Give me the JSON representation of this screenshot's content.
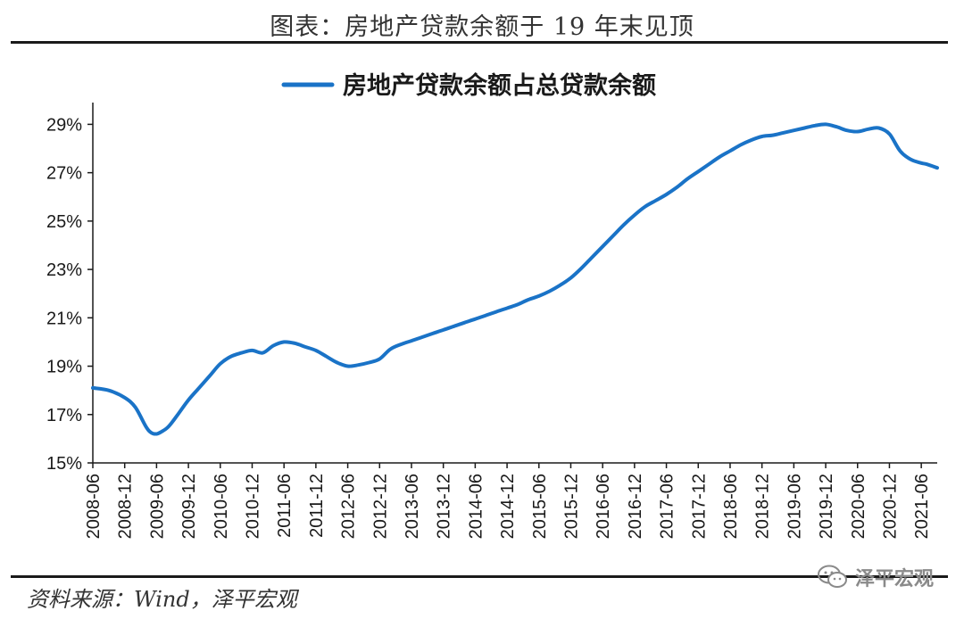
{
  "header": {
    "title": "图表：房地产贷款余额于 19 年末见顶"
  },
  "source": "资料来源：Wind，泽平宏观",
  "watermark": {
    "label": "泽平宏观",
    "icon": "wechat-icon"
  },
  "colors": {
    "series": "#1a73c7",
    "axis": "#1a1a1a",
    "rule": "#1a1a1a"
  },
  "chart_data": {
    "type": "line",
    "title": "",
    "xlabel": "",
    "ylabel": "",
    "ylim": [
      15,
      29.9
    ],
    "y_ticks": [
      15,
      17,
      19,
      21,
      23,
      25,
      27,
      29
    ],
    "y_tick_labels": [
      "15%",
      "17%",
      "19%",
      "21%",
      "23%",
      "25%",
      "27%",
      "29%"
    ],
    "x_range": [
      0,
      159
    ],
    "x_tick_labels": [
      "2008-06",
      "2008-12",
      "2009-06",
      "2009-12",
      "2010-06",
      "2010-12",
      "2011-06",
      "2011-12",
      "2012-06",
      "2012-12",
      "2013-06",
      "2013-12",
      "2014-06",
      "2014-12",
      "2015-06",
      "2015-12",
      "2016-06",
      "2016-12",
      "2017-06",
      "2017-12",
      "2018-06",
      "2018-12",
      "2019-06",
      "2019-12",
      "2020-06",
      "2020-12",
      "2021-06"
    ],
    "legend": {
      "position": "top-center"
    },
    "series": [
      {
        "name": "房地产贷款余额占总贷款余额",
        "x": [
          0,
          3,
          6,
          8,
          10,
          11,
          12,
          13,
          14,
          15,
          16,
          18,
          20,
          22,
          24,
          26,
          28,
          30,
          32,
          34,
          36,
          38,
          40,
          42,
          44,
          46,
          48,
          50,
          52,
          54,
          56,
          58,
          60,
          62,
          64,
          66,
          68,
          70,
          72,
          74,
          76,
          78,
          80,
          82,
          84,
          86,
          88,
          90,
          92,
          94,
          96,
          98,
          100,
          102,
          104,
          106,
          108,
          110,
          112,
          114,
          116,
          118,
          120,
          122,
          124,
          126,
          128,
          130,
          132,
          134,
          136,
          138,
          140,
          142,
          144,
          146,
          148,
          150,
          152,
          154,
          156,
          157,
          159
        ],
        "values": [
          18.1,
          18.0,
          17.7,
          17.3,
          16.5,
          16.25,
          16.2,
          16.3,
          16.45,
          16.7,
          17.0,
          17.6,
          18.1,
          18.6,
          19.1,
          19.4,
          19.55,
          19.65,
          19.55,
          19.85,
          20.0,
          19.95,
          19.8,
          19.65,
          19.4,
          19.15,
          19.0,
          19.05,
          19.15,
          19.3,
          19.7,
          19.9,
          20.05,
          20.2,
          20.35,
          20.5,
          20.65,
          20.8,
          20.95,
          21.1,
          21.25,
          21.4,
          21.55,
          21.75,
          21.9,
          22.1,
          22.35,
          22.65,
          23.05,
          23.5,
          23.95,
          24.4,
          24.85,
          25.25,
          25.6,
          25.85,
          26.1,
          26.4,
          26.75,
          27.05,
          27.35,
          27.65,
          27.9,
          28.15,
          28.35,
          28.5,
          28.55,
          28.65,
          28.75,
          28.85,
          28.95,
          29.0,
          28.9,
          28.75,
          28.7,
          28.8,
          28.85,
          28.6,
          27.9,
          27.55,
          27.4,
          27.35,
          27.2
        ]
      }
    ]
  }
}
